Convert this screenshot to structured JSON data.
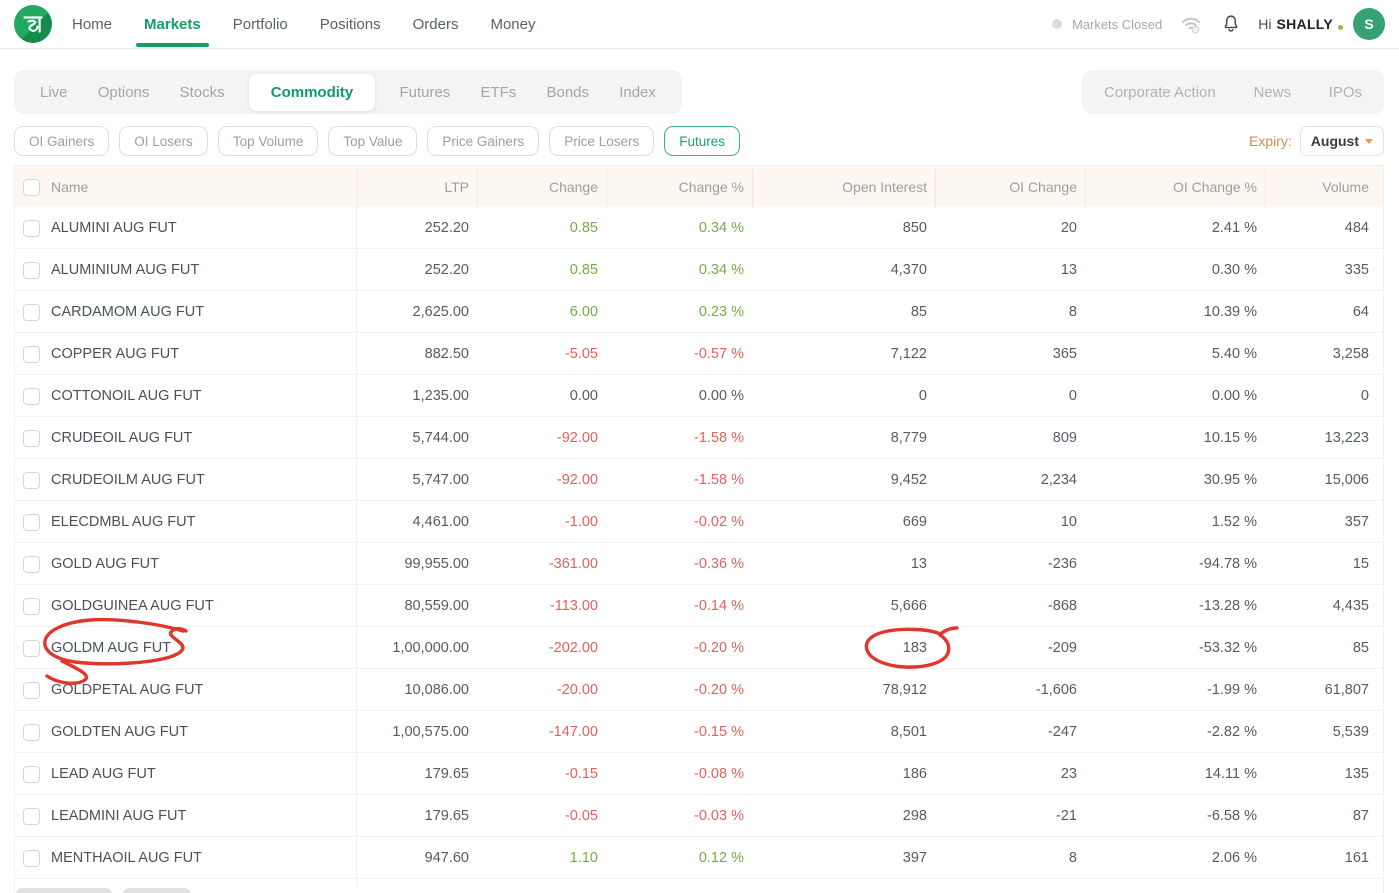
{
  "brand": {
    "name": "dhan",
    "color": "#1aa05f"
  },
  "top_nav": {
    "items": [
      {
        "label": "Home",
        "active": false
      },
      {
        "label": "Markets",
        "active": true
      },
      {
        "label": "Portfolio",
        "active": false
      },
      {
        "label": "Positions",
        "active": false
      },
      {
        "label": "Orders",
        "active": false
      },
      {
        "label": "Money",
        "active": false
      }
    ]
  },
  "header_right": {
    "market_status": "Markets Closed",
    "greeting_prefix": "Hi",
    "username": "SHALLY",
    "avatar_initial": "S",
    "icons": [
      "wifi-icon",
      "bell-icon"
    ]
  },
  "market_tabs": {
    "items": [
      "Live",
      "Options",
      "Stocks",
      "Commodity",
      "Futures",
      "ETFs",
      "Bonds",
      "Index"
    ],
    "active": "Commodity"
  },
  "secondary_links": [
    "Corporate Action",
    "News",
    "IPOs"
  ],
  "filters": {
    "buttons": [
      "OI Gainers",
      "OI Losers",
      "Top Volume",
      "Top Value",
      "Price Gainers",
      "Price Losers",
      "Futures"
    ],
    "active": "Futures",
    "expiry_label": "Expiry:",
    "expiry_value": "August"
  },
  "table": {
    "columns": [
      "Name",
      "LTP",
      "Change",
      "Change %",
      "Open Interest",
      "OI Change",
      "OI Change %",
      "Volume"
    ],
    "rows": [
      {
        "name": "ALUMINI AUG FUT",
        "ltp": "252.20",
        "change": "0.85",
        "change_pct": "0.34 %",
        "oi": "850",
        "oi_change": "20",
        "oi_change_pct": "2.41 %",
        "volume": "484",
        "trend": "up"
      },
      {
        "name": "ALUMINIUM AUG FUT",
        "ltp": "252.20",
        "change": "0.85",
        "change_pct": "0.34 %",
        "oi": "4,370",
        "oi_change": "13",
        "oi_change_pct": "0.30 %",
        "volume": "335",
        "trend": "up"
      },
      {
        "name": "CARDAMOM AUG FUT",
        "ltp": "2,625.00",
        "change": "6.00",
        "change_pct": "0.23 %",
        "oi": "85",
        "oi_change": "8",
        "oi_change_pct": "10.39 %",
        "volume": "64",
        "trend": "up"
      },
      {
        "name": "COPPER AUG FUT",
        "ltp": "882.50",
        "change": "-5.05",
        "change_pct": "-0.57 %",
        "oi": "7,122",
        "oi_change": "365",
        "oi_change_pct": "5.40 %",
        "volume": "3,258",
        "trend": "down"
      },
      {
        "name": "COTTONOIL AUG FUT",
        "ltp": "1,235.00",
        "change": "0.00",
        "change_pct": "0.00 %",
        "oi": "0",
        "oi_change": "0",
        "oi_change_pct": "0.00 %",
        "volume": "0",
        "trend": "flat"
      },
      {
        "name": "CRUDEOIL AUG FUT",
        "ltp": "5,744.00",
        "change": "-92.00",
        "change_pct": "-1.58 %",
        "oi": "8,779",
        "oi_change": "809",
        "oi_change_pct": "10.15 %",
        "volume": "13,223",
        "trend": "down"
      },
      {
        "name": "CRUDEOILM AUG FUT",
        "ltp": "5,747.00",
        "change": "-92.00",
        "change_pct": "-1.58 %",
        "oi": "9,452",
        "oi_change": "2,234",
        "oi_change_pct": "30.95 %",
        "volume": "15,006",
        "trend": "down"
      },
      {
        "name": "ELECDMBL AUG FUT",
        "ltp": "4,461.00",
        "change": "-1.00",
        "change_pct": "-0.02 %",
        "oi": "669",
        "oi_change": "10",
        "oi_change_pct": "1.52 %",
        "volume": "357",
        "trend": "down"
      },
      {
        "name": "GOLD AUG FUT",
        "ltp": "99,955.00",
        "change": "-361.00",
        "change_pct": "-0.36 %",
        "oi": "13",
        "oi_change": "-236",
        "oi_change_pct": "-94.78 %",
        "volume": "15",
        "trend": "down"
      },
      {
        "name": "GOLDGUINEA AUG FUT",
        "ltp": "80,559.00",
        "change": "-113.00",
        "change_pct": "-0.14 %",
        "oi": "5,666",
        "oi_change": "-868",
        "oi_change_pct": "-13.28 %",
        "volume": "4,435",
        "trend": "down"
      },
      {
        "name": "GOLDM AUG FUT",
        "ltp": "1,00,000.00",
        "change": "-202.00",
        "change_pct": "-0.20 %",
        "oi": "183",
        "oi_change": "-209",
        "oi_change_pct": "-53.32 %",
        "volume": "85",
        "trend": "down",
        "annotated": true
      },
      {
        "name": "GOLDPETAL AUG FUT",
        "ltp": "10,086.00",
        "change": "-20.00",
        "change_pct": "-0.20 %",
        "oi": "78,912",
        "oi_change": "-1,606",
        "oi_change_pct": "-1.99 %",
        "volume": "61,807",
        "trend": "down"
      },
      {
        "name": "GOLDTEN AUG FUT",
        "ltp": "1,00,575.00",
        "change": "-147.00",
        "change_pct": "-0.15 %",
        "oi": "8,501",
        "oi_change": "-247",
        "oi_change_pct": "-2.82 %",
        "volume": "5,539",
        "trend": "down"
      },
      {
        "name": "LEAD AUG FUT",
        "ltp": "179.65",
        "change": "-0.15",
        "change_pct": "-0.08 %",
        "oi": "186",
        "oi_change": "23",
        "oi_change_pct": "14.11 %",
        "volume": "135",
        "trend": "down"
      },
      {
        "name": "LEADMINI AUG FUT",
        "ltp": "179.65",
        "change": "-0.05",
        "change_pct": "-0.03 %",
        "oi": "298",
        "oi_change": "-21",
        "oi_change_pct": "-6.58 %",
        "volume": "87",
        "trend": "down"
      },
      {
        "name": "MENTHAOIL AUG FUT",
        "ltp": "947.60",
        "change": "1.10",
        "change_pct": "0.12 %",
        "oi": "397",
        "oi_change": "8",
        "oi_change_pct": "2.06 %",
        "volume": "161",
        "trend": "up"
      }
    ]
  },
  "annotation": {
    "color": "#e0372c",
    "circled_name": "GOLDM AUG FUT",
    "circled_value": "183",
    "circled_value_column": "Open Interest"
  },
  "colors": {
    "positive": "#74ad43",
    "negative": "#e2625d",
    "brand_green": "#12a164",
    "header_bg": "#fcf7f1"
  }
}
